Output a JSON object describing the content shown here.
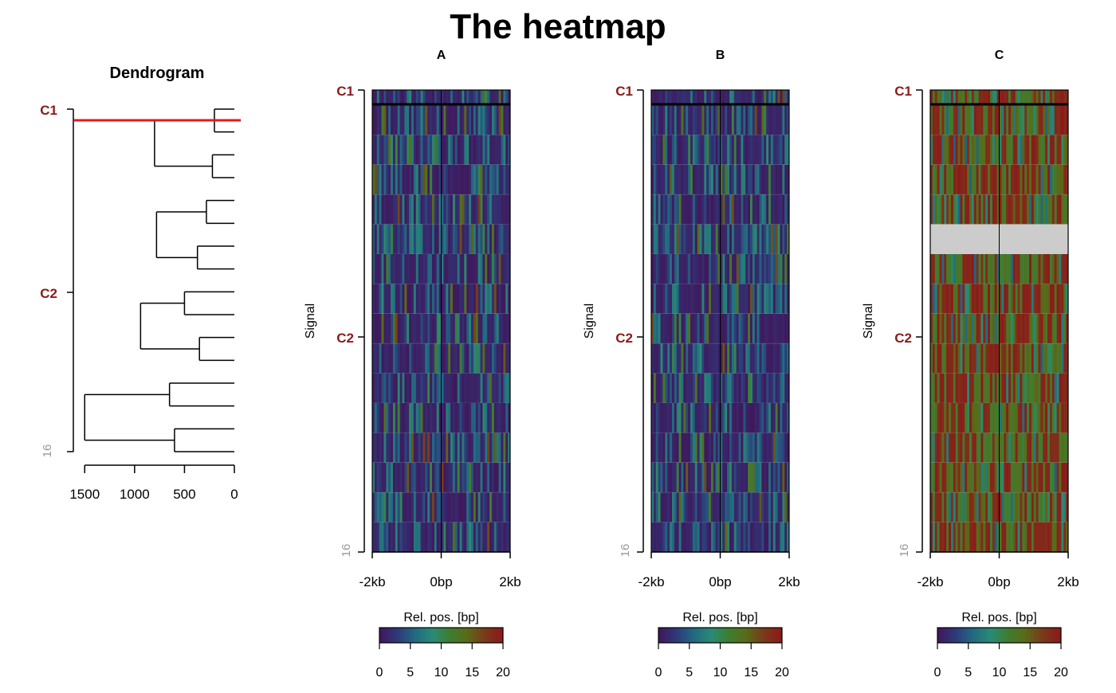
{
  "title": "The heatmap",
  "colors": {
    "cluster_label": "#8b1a1a",
    "cut_line": "#e31a1c",
    "na_fill": "#cccccc",
    "scale": [
      "#40185c",
      "#2e3a7a",
      "#226a80",
      "#2a8a74",
      "#3e7d30",
      "#5a6a18",
      "#7a3a1a",
      "#8b1a1a"
    ]
  },
  "dendrogram": {
    "title": "Dendrogram",
    "cluster_labels": [
      "C1",
      "C2"
    ],
    "bottom_label": "16",
    "x_ticks": [
      "1500",
      "1000",
      "500",
      "0"
    ],
    "x_range": [
      1550,
      0
    ],
    "cut_height": 1500,
    "n_leaves": 16,
    "nodes": [
      {
        "a": 1,
        "b": 2,
        "h": 200
      },
      {
        "a": 3,
        "b": 4,
        "h": 220
      },
      {
        "a": 5,
        "b": 6,
        "h": 280
      },
      {
        "a": 7,
        "b": 8,
        "h": 370
      },
      {
        "a": 9,
        "b": 10,
        "h": 500
      },
      {
        "a": 11,
        "b": 12,
        "h": 350
      },
      {
        "a": 13,
        "b": 14,
        "h": 650
      },
      {
        "a": 15,
        "b": 16,
        "h": 600
      },
      {
        "a": 17,
        "b": 18,
        "h": 800
      },
      {
        "a": 19,
        "b": 20,
        "h": 780
      },
      {
        "a": 21,
        "b": 22,
        "h": 940
      },
      {
        "a": 23,
        "b": 24,
        "h": 1500
      }
    ],
    "leaf_order": [
      0,
      1,
      2,
      3,
      4,
      5,
      6,
      7,
      8,
      9,
      10,
      11,
      12,
      13,
      14,
      15
    ]
  },
  "panels": [
    {
      "id": "A",
      "title": "A",
      "ylabel": "Signal",
      "xlabel": "Rel. pos. [bp]",
      "palette": "low",
      "seed": 11,
      "na_rows": []
    },
    {
      "id": "B",
      "title": "B",
      "ylabel": "Signal",
      "xlabel": "Rel. pos. [bp]",
      "palette": "low",
      "seed": 37,
      "na_rows": []
    },
    {
      "id": "C",
      "title": "C",
      "ylabel": "Signal",
      "xlabel": "Rel. pos. [bp]",
      "palette": "high",
      "seed": 73,
      "na_rows": [
        5
      ]
    }
  ],
  "heatmap_axis": {
    "x_ticks": [
      "-2kb",
      "0bp",
      "2kb"
    ],
    "x_range": [
      -2000,
      2000
    ],
    "cluster_labels": [
      "C1",
      "C2"
    ],
    "bottom_label": "16",
    "n_rows": 16,
    "cluster_boundary_after_row": 1
  },
  "colorbar": {
    "ticks": [
      "0",
      "5",
      "10",
      "15",
      "20"
    ],
    "range": [
      0,
      20
    ]
  },
  "chart_data": [
    {
      "type": "heatmap",
      "title": "A",
      "ylabel": "Signal",
      "xlabel": "Rel. pos. [bp]",
      "xlim": [
        -2000,
        2000
      ],
      "value_range": [
        0,
        20
      ],
      "rows": 16,
      "clusters": [
        "C1",
        "C2"
      ]
    },
    {
      "type": "heatmap",
      "title": "B",
      "ylabel": "Signal",
      "xlabel": "Rel. pos. [bp]",
      "xlim": [
        -2000,
        2000
      ],
      "value_range": [
        0,
        20
      ],
      "rows": 16,
      "clusters": [
        "C1",
        "C2"
      ]
    },
    {
      "type": "heatmap",
      "title": "C",
      "ylabel": "Signal",
      "xlabel": "Rel. pos. [bp]",
      "xlim": [
        -2000,
        2000
      ],
      "value_range": [
        0,
        20
      ],
      "rows": 16,
      "clusters": [
        "C1",
        "C2"
      ]
    }
  ]
}
